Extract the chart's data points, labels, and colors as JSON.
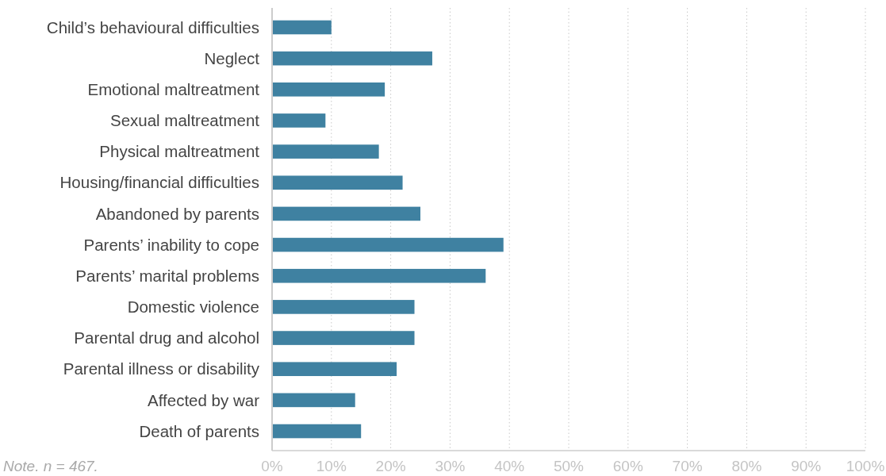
{
  "chart_data": {
    "type": "bar",
    "orientation": "horizontal",
    "categories": [
      "Child’s behavioural difficulties",
      "Neglect",
      "Emotional maltreatment",
      "Sexual maltreatment",
      "Physical maltreatment",
      "Housing/financial difficulties",
      "Abandoned by parents",
      "Parents’ inability to cope",
      "Parents’ marital problems",
      "Domestic violence",
      "Parental drug and alcohol",
      "Parental illness or disability",
      "Affected by war",
      "Death of parents"
    ],
    "values": [
      10,
      27,
      19,
      9,
      18,
      22,
      25,
      39,
      36,
      24,
      24,
      21,
      14,
      15
    ],
    "color": "#3f81a1",
    "xlim": [
      0,
      100
    ],
    "xticks": [
      {
        "value": 0,
        "label": "0%"
      },
      {
        "value": 10,
        "label": "10%"
      },
      {
        "value": 20,
        "label": "20%"
      },
      {
        "value": 30,
        "label": "30%"
      },
      {
        "value": 40,
        "label": "40%"
      },
      {
        "value": 50,
        "label": "50%"
      },
      {
        "value": 60,
        "label": "60%"
      },
      {
        "value": 70,
        "label": "70%"
      },
      {
        "value": 80,
        "label": "80%"
      },
      {
        "value": 90,
        "label": "90%"
      },
      {
        "value": 100,
        "label": "100%"
      }
    ],
    "grid": "x",
    "annotations": [
      "Note. n = 467."
    ]
  }
}
